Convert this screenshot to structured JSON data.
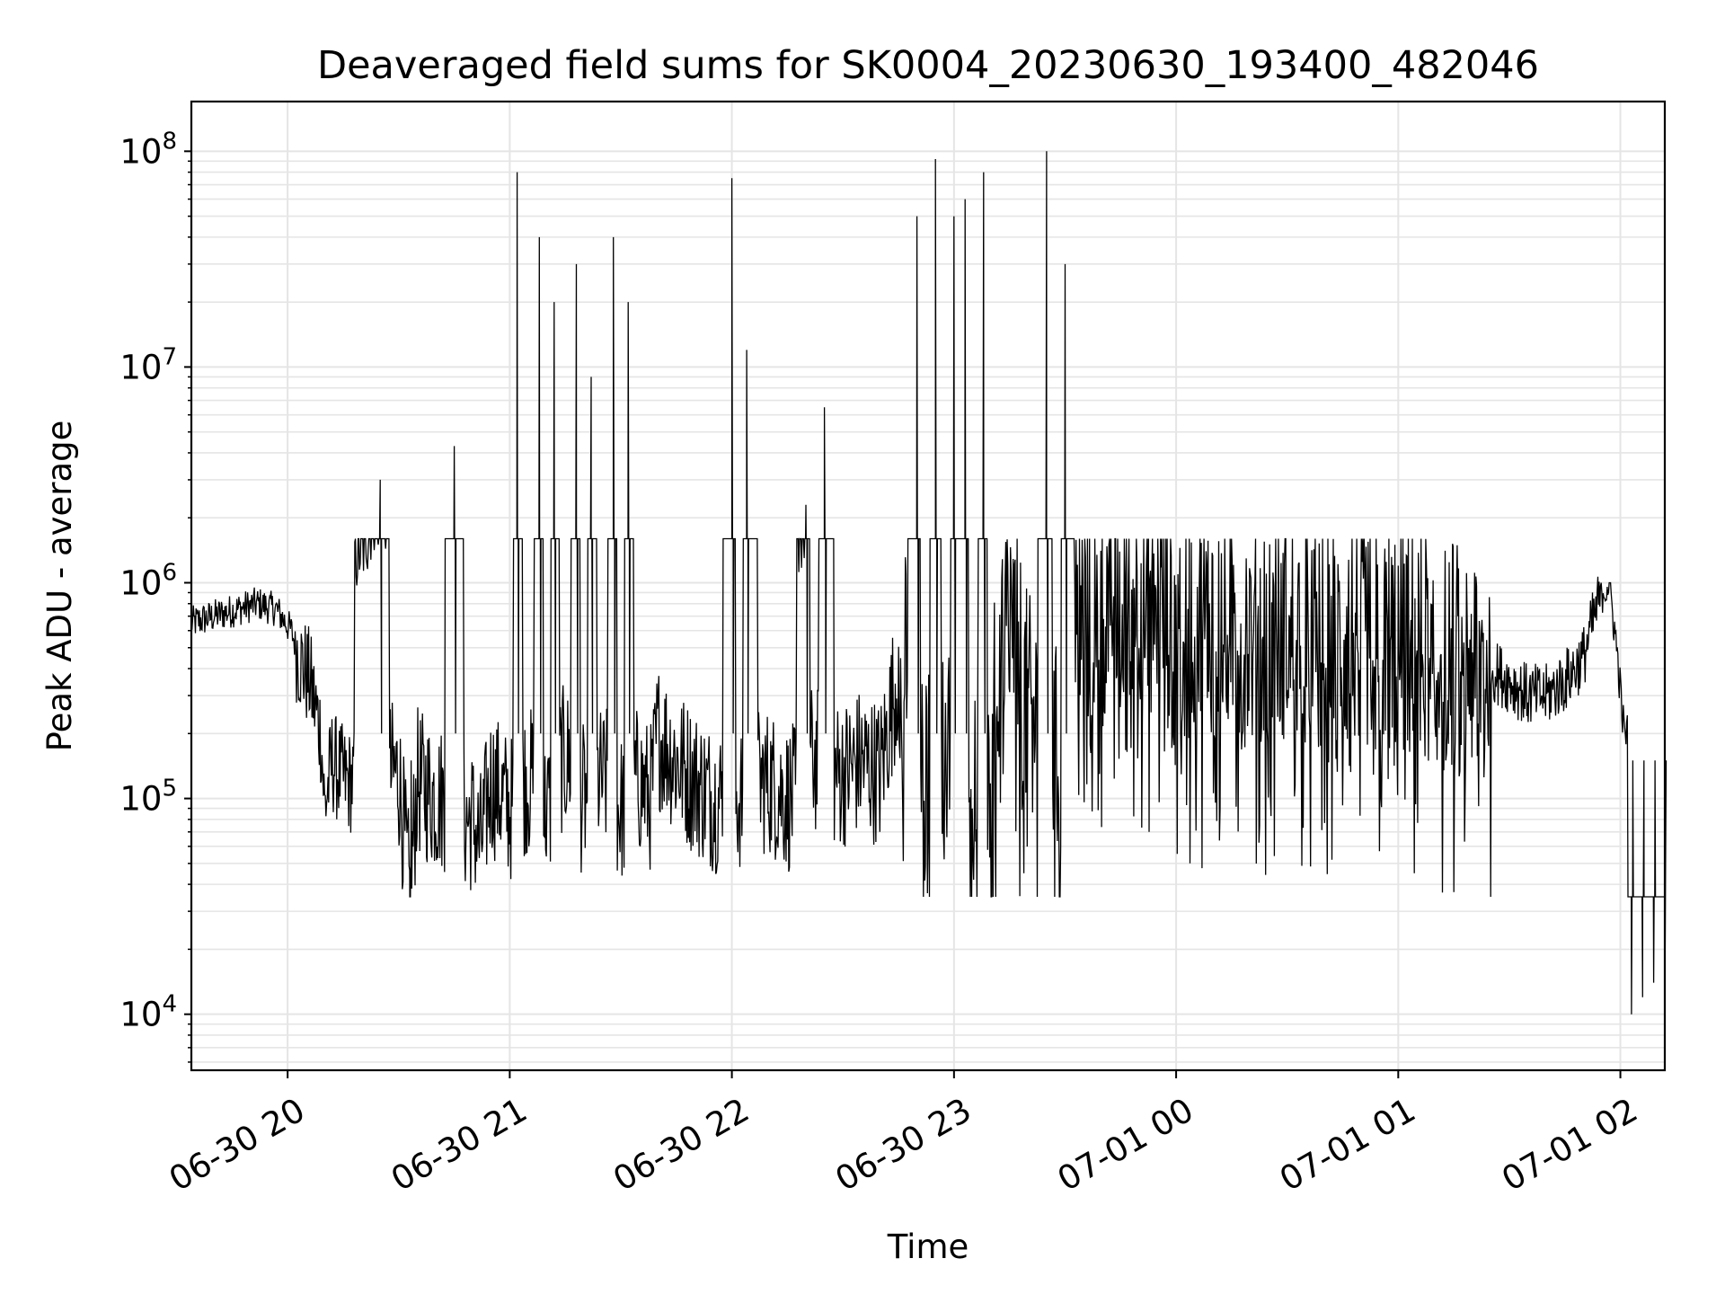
{
  "chart_data": {
    "type": "line",
    "title": "Deaveraged field sums for SK0004_20230630_193400_482046",
    "xlabel": "Time",
    "ylabel": "Peak ADU - average",
    "yscale": "log",
    "ylim": [
      5500,
      170000000
    ],
    "xlim": [
      "2023-06-30T19:34:00",
      "2023-07-01T02:12:00"
    ],
    "grid": true,
    "line_color": "#000000",
    "grid_color": "#e5e5e5",
    "x_ticks": [
      {
        "value": "2023-06-30T20:00:00",
        "label": "06-30 20"
      },
      {
        "value": "2023-06-30T21:00:00",
        "label": "06-30 21"
      },
      {
        "value": "2023-06-30T22:00:00",
        "label": "06-30 22"
      },
      {
        "value": "2023-06-30T23:00:00",
        "label": "06-30 23"
      },
      {
        "value": "2023-07-01T00:00:00",
        "label": "07-01 00"
      },
      {
        "value": "2023-07-01T01:00:00",
        "label": "07-01 01"
      },
      {
        "value": "2023-07-01T02:00:00",
        "label": "07-01 02"
      }
    ],
    "y_ticks": [
      {
        "value": 10000,
        "base": "10",
        "exp": "4"
      },
      {
        "value": 100000,
        "base": "10",
        "exp": "5"
      },
      {
        "value": 1000000,
        "base": "10",
        "exp": "6"
      },
      {
        "value": 10000000,
        "base": "10",
        "exp": "7"
      },
      {
        "value": 100000000,
        "base": "10",
        "exp": "8"
      }
    ],
    "series": [
      {
        "x": [
          "2023-06-30T19:34:00",
          "2023-06-30T19:40:00",
          "2023-06-30T19:46:00",
          "2023-06-30T19:52:00",
          "2023-06-30T19:57:00",
          "2023-06-30T20:01:00",
          "2023-06-30T20:03:00",
          "2023-06-30T20:06:00",
          "2023-06-30T20:09:00",
          "2023-06-30T20:10:00",
          "2023-06-30T20:12:00",
          "2023-06-30T20:14:00",
          "2023-06-30T20:16:00",
          "2023-06-30T20:20:00",
          "2023-06-30T20:25:00",
          "2023-06-30T20:30:00",
          "2023-06-30T20:33:00",
          "2023-06-30T20:35:00",
          "2023-06-30T20:40:00",
          "2023-06-30T20:45:00",
          "2023-06-30T20:50:00",
          "2023-06-30T20:52:00",
          "2023-06-30T20:55:00",
          "2023-06-30T21:00:00",
          "2023-06-30T21:02:00",
          "2023-06-30T21:05:00",
          "2023-06-30T21:08:00",
          "2023-06-30T21:10:00",
          "2023-06-30T21:12:00",
          "2023-06-30T21:15:00",
          "2023-06-30T21:18:00",
          "2023-06-30T21:20:00",
          "2023-06-30T21:22:00",
          "2023-06-30T21:25:00",
          "2023-06-30T21:28:00",
          "2023-06-30T21:30:00",
          "2023-06-30T21:32:00",
          "2023-06-30T21:35:00",
          "2023-06-30T21:38:00",
          "2023-06-30T21:40:00",
          "2023-06-30T21:45:00",
          "2023-06-30T21:50:00",
          "2023-06-30T21:55:00",
          "2023-06-30T22:00:00",
          "2023-06-30T22:02:00",
          "2023-06-30T22:04:00",
          "2023-06-30T22:10:00",
          "2023-06-30T22:15:00",
          "2023-06-30T22:20:00",
          "2023-06-30T22:22:00",
          "2023-06-30T22:25:00",
          "2023-06-30T22:30:00",
          "2023-06-30T22:35:00",
          "2023-06-30T22:40:00",
          "2023-06-30T22:45:00",
          "2023-06-30T22:50:00",
          "2023-06-30T22:52:00",
          "2023-06-30T22:55:00",
          "2023-06-30T22:58:00",
          "2023-06-30T23:00:00",
          "2023-06-30T23:03:00",
          "2023-06-30T23:05:00",
          "2023-06-30T23:08:00",
          "2023-06-30T23:10:00",
          "2023-06-30T23:12:00",
          "2023-06-30T23:15:00",
          "2023-06-30T23:20:00",
          "2023-06-30T23:25:00",
          "2023-06-30T23:28:00",
          "2023-06-30T23:30:00",
          "2023-06-30T23:35:00",
          "2023-06-30T23:40:00",
          "2023-06-30T23:45:00",
          "2023-06-30T23:50:00",
          "2023-06-30T23:55:00",
          "2023-07-01T00:00:00",
          "2023-07-01T00:10:00",
          "2023-07-01T00:20:00",
          "2023-07-01T00:30:00",
          "2023-07-01T00:40:00",
          "2023-07-01T00:50:00",
          "2023-07-01T01:00:00",
          "2023-07-01T01:10:00",
          "2023-07-01T01:20:00",
          "2023-07-01T01:25:00",
          "2023-07-01T01:30:00",
          "2023-07-01T01:35:00",
          "2023-07-01T01:40:00",
          "2023-07-01T01:45:00",
          "2023-07-01T01:50:00",
          "2023-07-01T01:53:00",
          "2023-07-01T01:55:00",
          "2023-07-01T01:57:00",
          "2023-07-01T01:59:00",
          "2023-07-01T02:01:00",
          "2023-07-01T02:03:00",
          "2023-07-01T02:06:00",
          "2023-07-01T02:09:00",
          "2023-07-01T02:12:00"
        ],
        "values": [
          650000,
          700000,
          750000,
          800000,
          750000,
          600000,
          450000,
          350000,
          200000,
          90000,
          150000,
          130000,
          120000,
          1500000,
          3000000,
          130000,
          35000,
          120000,
          100000,
          4300000,
          80000,
          60000,
          120000,
          90000,
          80000000,
          120000,
          40000000,
          90000,
          20000000,
          150000,
          30000000,
          100000,
          9000000,
          120000,
          40000000,
          90000,
          20000000,
          120000,
          100000,
          200000,
          150000,
          120000,
          100000,
          75000000,
          100000,
          12000000,
          120000,
          100000,
          2300000,
          150000,
          6500000,
          130000,
          150000,
          130000,
          400000,
          50000000,
          120000,
          92000000,
          200000,
          50000000,
          60000000,
          120000,
          80000000,
          150000,
          400000,
          800000,
          250000,
          100000000,
          150000,
          30000000,
          700000,
          800000,
          900000,
          1000000,
          900000,
          600000,
          700000,
          600000,
          650000,
          500000,
          600000,
          550000,
          500000,
          450000,
          400000,
          350000,
          300000,
          300000,
          350000,
          450000,
          700000,
          900000,
          1000000,
          500000,
          200000,
          10000,
          12000,
          14000,
          11000
        ],
        "draw": "trace"
      }
    ]
  }
}
